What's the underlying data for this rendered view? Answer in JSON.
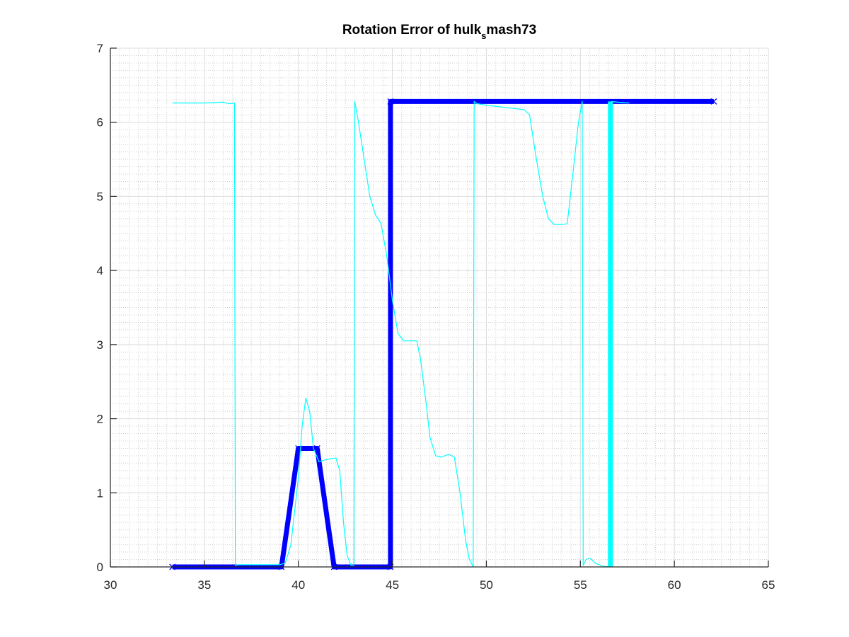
{
  "chart_data": {
    "type": "line",
    "title": "Rotation Error of hulk",
    "title_subscript": "s",
    "title_suffix": "mash73",
    "xlabel": "",
    "ylabel": "",
    "xlim": [
      30,
      65
    ],
    "ylim": [
      0,
      7
    ],
    "x_ticks": [
      "30",
      "35",
      "40",
      "45",
      "50",
      "55",
      "60",
      "65"
    ],
    "y_ticks": [
      "0",
      "1",
      "2",
      "3",
      "4",
      "5",
      "6",
      "7"
    ],
    "grid": "major-and-minor",
    "colors": {
      "blue": "#0000ff",
      "cyan": "#00ffff",
      "axis": "#262626"
    },
    "series": [
      {
        "color": "#0000ff",
        "line_width": "thick",
        "marker": "x",
        "x": [
          33.3,
          39.1,
          40.0,
          41.0,
          41.9,
          44.9,
          44.9,
          62.1
        ],
        "y": [
          0.0,
          0.0,
          1.6,
          1.6,
          0.0,
          0.0,
          6.28,
          6.28
        ]
      },
      {
        "color": "#00ffff",
        "line_width": "thin",
        "x": [
          33.3,
          34.0,
          35.0,
          36.0,
          36.3,
          36.6,
          36.65,
          36.8,
          37.5,
          38.5,
          39.0,
          39.3,
          39.6,
          40.0,
          40.2,
          40.4,
          40.6,
          40.8,
          41.1,
          41.5,
          42.0,
          42.2,
          42.4,
          42.6,
          42.8,
          42.95,
          43.0,
          43.2,
          43.5,
          43.8,
          44.1,
          44.4,
          44.7,
          45.0,
          45.3,
          45.6,
          46.0,
          46.3,
          46.5,
          46.8,
          47.0,
          47.3,
          47.6,
          48.0,
          48.3,
          48.6,
          48.9,
          49.1,
          49.3,
          49.35,
          49.5,
          50.0,
          51.0,
          52.0,
          52.3,
          52.6,
          53.0,
          53.3,
          53.6,
          54.0,
          54.3,
          54.6,
          54.9,
          55.1,
          55.15,
          55.3,
          55.5,
          55.8,
          56.2,
          56.6,
          56.65,
          57.0,
          57.6
        ],
        "y": [
          6.26,
          6.26,
          6.26,
          6.27,
          6.25,
          6.26,
          0.02,
          0.03,
          0.03,
          0.03,
          0.03,
          0.05,
          0.3,
          1.2,
          1.9,
          2.28,
          2.1,
          1.6,
          1.42,
          1.45,
          1.47,
          1.3,
          0.6,
          0.15,
          0.02,
          0.02,
          6.28,
          6.0,
          5.5,
          5.0,
          4.75,
          4.63,
          4.2,
          3.6,
          3.15,
          3.05,
          3.05,
          3.05,
          2.8,
          2.2,
          1.75,
          1.5,
          1.48,
          1.52,
          1.48,
          1.0,
          0.35,
          0.1,
          0.0,
          6.28,
          6.25,
          6.23,
          6.2,
          6.17,
          6.1,
          5.6,
          5.0,
          4.7,
          4.62,
          4.62,
          4.63,
          5.3,
          6.0,
          6.28,
          0.02,
          0.1,
          0.12,
          0.05,
          0.01,
          0.0,
          6.28,
          6.27,
          6.26
        ]
      },
      {
        "color": "#00ffff",
        "line_width": "thick",
        "x": [
          56.6,
          56.6
        ],
        "y": [
          0.0,
          6.28
        ]
      }
    ]
  }
}
